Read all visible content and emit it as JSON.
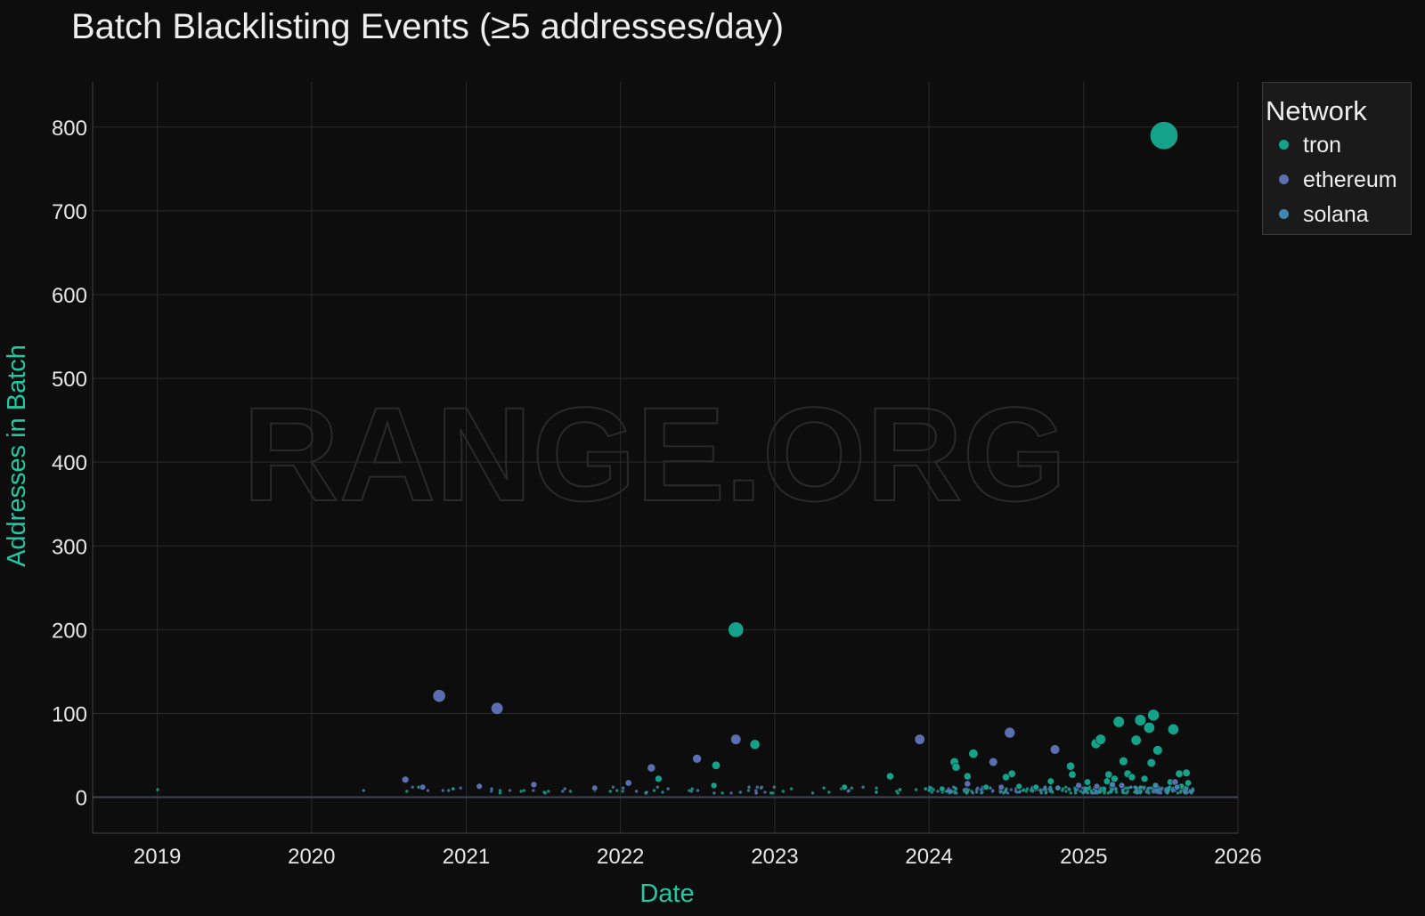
{
  "chart_data": {
    "type": "scatter",
    "title": "Batch Blacklisting Events (≥5 addresses/day)",
    "xlabel": "Date",
    "ylabel": "Addresses in Batch",
    "x_ticks": [
      "2019",
      "2020",
      "2021",
      "2022",
      "2023",
      "2024",
      "2025",
      "2026"
    ],
    "y_ticks": [
      0,
      100,
      200,
      300,
      400,
      500,
      600,
      700,
      800
    ],
    "xlim": [
      "2018-08-01",
      "2026-01-01"
    ],
    "ylim": [
      -43,
      854
    ],
    "grid": true,
    "legend_position": "top-right outside",
    "legend_title": "Network",
    "watermark": "RANGE.ORG",
    "colors": {
      "tron": "#14a38a",
      "ethereum": "#5b6fb0",
      "solana": "#3f86b0",
      "axis_title": "#1fc9a3"
    },
    "series": [
      {
        "name": "tron",
        "points": [
          [
            "2022-10-01",
            200
          ],
          [
            "2022-11-15",
            63
          ],
          [
            "2022-08-15",
            38
          ],
          [
            "2022-04-01",
            22
          ],
          [
            "2022-08-10",
            14
          ],
          [
            "2023-10-01",
            25
          ],
          [
            "2024-03-01",
            42
          ],
          [
            "2024-03-05",
            36
          ],
          [
            "2024-04-01",
            25
          ],
          [
            "2024-04-15",
            52
          ],
          [
            "2024-07-15",
            28
          ],
          [
            "2024-07-01",
            24
          ],
          [
            "2024-08-01",
            13
          ],
          [
            "2024-10-15",
            19
          ],
          [
            "2024-12-01",
            37
          ],
          [
            "2024-12-05",
            27
          ],
          [
            "2025-01-30",
            64
          ],
          [
            "2025-02-10",
            69
          ],
          [
            "2025-03-01",
            27
          ],
          [
            "2025-03-15",
            22
          ],
          [
            "2025-03-25",
            90
          ],
          [
            "2025-04-05",
            43
          ],
          [
            "2025-04-15",
            28
          ],
          [
            "2025-04-25",
            24
          ],
          [
            "2025-05-05",
            68
          ],
          [
            "2025-05-15",
            92
          ],
          [
            "2025-05-25",
            22
          ],
          [
            "2025-06-05",
            83
          ],
          [
            "2025-06-10",
            41
          ],
          [
            "2025-06-15",
            98
          ],
          [
            "2025-06-25",
            56
          ],
          [
            "2025-07-10",
            790
          ],
          [
            "2025-08-01",
            81
          ],
          [
            "2025-08-15",
            28
          ],
          [
            "2025-09-01",
            29
          ],
          [
            "2025-09-05",
            17
          ],
          [
            "2024-05-15",
            12
          ],
          [
            "2024-09-10",
            12
          ],
          [
            "2025-01-10",
            18
          ],
          [
            "2025-02-25",
            19
          ],
          [
            "2024-02-01",
            10
          ],
          [
            "2023-06-15",
            12
          ],
          [
            "2025-07-25",
            18
          ],
          [
            "2025-08-20",
            13
          ]
        ]
      },
      {
        "name": "ethereum",
        "points": [
          [
            "2020-10-29",
            121
          ],
          [
            "2021-03-15",
            106
          ],
          [
            "2022-03-15",
            35
          ],
          [
            "2022-07-01",
            46
          ],
          [
            "2022-10-01",
            69
          ],
          [
            "2023-12-10",
            69
          ],
          [
            "2024-06-01",
            42
          ],
          [
            "2024-07-10",
            77
          ],
          [
            "2024-10-25",
            57
          ],
          [
            "2020-08-10",
            21
          ],
          [
            "2020-09-20",
            12
          ],
          [
            "2021-02-01",
            13
          ],
          [
            "2021-06-10",
            15
          ],
          [
            "2021-11-01",
            11
          ],
          [
            "2022-01-20",
            17
          ],
          [
            "2024-04-01",
            16
          ],
          [
            "2024-06-20",
            12
          ],
          [
            "2024-12-20",
            14
          ],
          [
            "2025-02-01",
            13
          ],
          [
            "2025-04-01",
            14
          ],
          [
            "2025-08-05",
            18
          ]
        ]
      },
      {
        "name": "solana",
        "points": [
          [
            "2025-03-10",
            15
          ],
          [
            "2025-06-20",
            14
          ],
          [
            "2025-08-10",
            12
          ],
          [
            "2024-11-01",
            11
          ]
        ]
      }
    ],
    "small_points_y": [
      5,
      6,
      7,
      8,
      9,
      10,
      11,
      12
    ]
  }
}
